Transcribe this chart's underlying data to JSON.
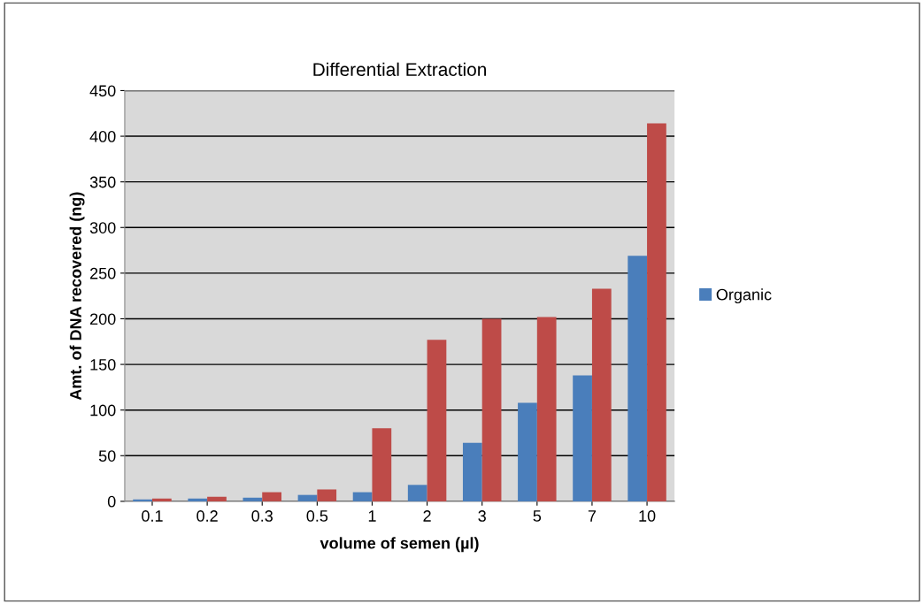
{
  "chart_data": {
    "type": "bar",
    "title": "Differential Extraction",
    "xlabel": "volume of semen (µl)",
    "ylabel": "Amt. of DNA recovered (ng)",
    "categories": [
      "0.1",
      "0.2",
      "0.3",
      "0.5",
      "1",
      "2",
      "3",
      "5",
      "7",
      "10"
    ],
    "series": [
      {
        "name": "Organic",
        "color": "#4a7ebb",
        "values": [
          2,
          3,
          4,
          7,
          10,
          18,
          64,
          108,
          138,
          269
        ]
      },
      {
        "color": "#be4b48",
        "values": [
          3,
          5,
          10,
          13,
          80,
          177,
          200,
          202,
          233,
          414
        ]
      }
    ],
    "ylim": [
      0,
      450
    ],
    "yticks": [
      0,
      50,
      100,
      150,
      200,
      250,
      300,
      350,
      400,
      450
    ],
    "grid": "y",
    "legend": "right"
  }
}
